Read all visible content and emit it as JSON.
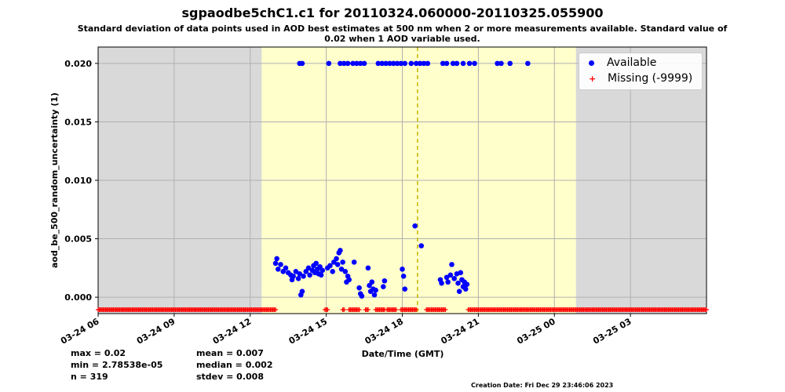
{
  "title": "sgpaodbe5chC1.c1 for 20110324.060000-20110325.055900",
  "subtitle": "Standard deviation of data points used in AOD best estimates at 500 nm when 2 or more measurements available. Standard value of 0.02 when 1 AOD variable used.",
  "stats": {
    "max": "max = 0.02",
    "min": "min = 2.78538e-05",
    "n": "n = 319",
    "mean": "mean = 0.007",
    "median": "median = 0.002",
    "stdev": "stdev = 0.008"
  },
  "creation_date": "Creation Date: Fri Dec 29 23:46:06 2023",
  "colors": {
    "available": "#0000ff",
    "missing": "#ff0000",
    "day_band": "#ffffcc",
    "night_band": "#d9d9d9",
    "noon_line": "#c8b400",
    "grid": "#b0b0b0"
  },
  "legend": {
    "available": "Available",
    "missing": "Missing (-9999)"
  },
  "chart_data": {
    "type": "scatter",
    "title": "sgpaodbe5chC1.c1 for 20110324.060000-20110325.055900",
    "xlabel": "Date/Time (GMT)",
    "ylabel": "aod_be_500_random_uncertainty (1)",
    "x_unit": "hours since 2011-03-24 06:00 GMT",
    "xlim": [
      0,
      24
    ],
    "ylim": [
      -0.0014,
      0.0214
    ],
    "grid": true,
    "legend_position": "top-right",
    "x_ticks": [
      {
        "x": 0,
        "label": "03-24 06"
      },
      {
        "x": 3,
        "label": "03-24 09"
      },
      {
        "x": 6,
        "label": "03-24 12"
      },
      {
        "x": 9,
        "label": "03-24 15"
      },
      {
        "x": 12,
        "label": "03-24 18"
      },
      {
        "x": 15,
        "label": "03-24 21"
      },
      {
        "x": 18,
        "label": "03-25 00"
      },
      {
        "x": 21,
        "label": "03-25 03"
      }
    ],
    "y_ticks": [
      {
        "y": 0.0,
        "label": "0.000"
      },
      {
        "y": 0.005,
        "label": "0.005"
      },
      {
        "y": 0.01,
        "label": "0.010"
      },
      {
        "y": 0.015,
        "label": "0.015"
      },
      {
        "y": 0.02,
        "label": "0.020"
      }
    ],
    "daylight_band": [
      6.45,
      18.85
    ],
    "solar_noon_x": 12.6,
    "series": [
      {
        "name": "Available",
        "points": [
          [
            7.95,
            0.02
          ],
          [
            8.05,
            0.02
          ],
          [
            9.1,
            0.02
          ],
          [
            9.55,
            0.02
          ],
          [
            9.7,
            0.02
          ],
          [
            9.85,
            0.02
          ],
          [
            10.05,
            0.02
          ],
          [
            10.2,
            0.02
          ],
          [
            10.35,
            0.02
          ],
          [
            10.5,
            0.02
          ],
          [
            11.05,
            0.02
          ],
          [
            11.2,
            0.02
          ],
          [
            11.35,
            0.02
          ],
          [
            11.5,
            0.02
          ],
          [
            11.65,
            0.02
          ],
          [
            11.8,
            0.02
          ],
          [
            11.95,
            0.02
          ],
          [
            12.1,
            0.02
          ],
          [
            12.35,
            0.02
          ],
          [
            12.55,
            0.02
          ],
          [
            12.7,
            0.02
          ],
          [
            12.85,
            0.02
          ],
          [
            13.0,
            0.02
          ],
          [
            13.6,
            0.02
          ],
          [
            13.75,
            0.02
          ],
          [
            14.0,
            0.02
          ],
          [
            14.15,
            0.02
          ],
          [
            14.4,
            0.02
          ],
          [
            14.65,
            0.02
          ],
          [
            14.85,
            0.02
          ],
          [
            15.75,
            0.02
          ],
          [
            15.9,
            0.02
          ],
          [
            16.25,
            0.02
          ],
          [
            16.95,
            0.02
          ],
          [
            7.0,
            0.0029
          ],
          [
            7.05,
            0.0033
          ],
          [
            7.1,
            0.0024
          ],
          [
            7.2,
            0.0028
          ],
          [
            7.3,
            0.0022
          ],
          [
            7.4,
            0.0025
          ],
          [
            7.5,
            0.0021
          ],
          [
            7.6,
            0.0019
          ],
          [
            7.65,
            0.0015
          ],
          [
            7.7,
            0.0018
          ],
          [
            7.8,
            0.0022
          ],
          [
            7.9,
            0.0016
          ],
          [
            7.95,
            0.002
          ],
          [
            8.0,
            0.0002
          ],
          [
            8.05,
            0.0005
          ],
          [
            8.1,
            0.0018
          ],
          [
            8.2,
            0.0022
          ],
          [
            8.3,
            0.0025
          ],
          [
            8.35,
            0.0019
          ],
          [
            8.45,
            0.0023
          ],
          [
            8.5,
            0.0027
          ],
          [
            8.55,
            0.0021
          ],
          [
            8.6,
            0.0029
          ],
          [
            8.65,
            0.0024
          ],
          [
            8.7,
            0.002
          ],
          [
            8.75,
            0.0026
          ],
          [
            8.8,
            0.0019
          ],
          [
            8.85,
            0.0023
          ],
          [
            9.05,
            0.0025
          ],
          [
            9.15,
            0.0027
          ],
          [
            9.25,
            0.0022
          ],
          [
            9.3,
            0.003
          ],
          [
            9.4,
            0.0033
          ],
          [
            9.45,
            0.0028
          ],
          [
            9.5,
            0.0038
          ],
          [
            9.55,
            0.004
          ],
          [
            9.6,
            0.0024
          ],
          [
            9.65,
            0.003
          ],
          [
            9.75,
            0.0022
          ],
          [
            9.8,
            0.0013
          ],
          [
            9.85,
            0.0018
          ],
          [
            9.9,
            0.0015
          ],
          [
            10.1,
            0.003
          ],
          [
            10.3,
            0.0008
          ],
          [
            10.35,
            0.0003
          ],
          [
            10.4,
            0.0001
          ],
          [
            10.65,
            0.0025
          ],
          [
            10.7,
            0.001
          ],
          [
            10.75,
            0.0005
          ],
          [
            10.8,
            0.0013
          ],
          [
            10.85,
            0.0007
          ],
          [
            10.9,
            0.0002
          ],
          [
            10.95,
            0.0006
          ],
          [
            11.25,
            0.0009
          ],
          [
            11.3,
            0.0014
          ],
          [
            12.0,
            0.0024
          ],
          [
            12.05,
            0.0018
          ],
          [
            12.1,
            0.0007
          ],
          [
            12.5,
            0.0061
          ],
          [
            12.75,
            0.0044
          ],
          [
            13.5,
            0.0015
          ],
          [
            13.55,
            0.0012
          ],
          [
            13.75,
            0.0017
          ],
          [
            13.8,
            0.0013
          ],
          [
            13.9,
            0.0019
          ],
          [
            13.95,
            0.0028
          ],
          [
            14.05,
            0.0016
          ],
          [
            14.15,
            0.002
          ],
          [
            14.2,
            0.0012
          ],
          [
            14.25,
            0.0005
          ],
          [
            14.3,
            0.0021
          ],
          [
            14.35,
            0.0015
          ],
          [
            14.4,
            0.0009
          ],
          [
            14.45,
            0.0013
          ],
          [
            14.5,
            0.0007
          ],
          [
            14.55,
            0.0011
          ]
        ]
      },
      {
        "name": "Missing (-9999)",
        "placement": "drawn just below the y-axis minimum",
        "ranges": [
          [
            0.0,
            7.0
          ],
          [
            8.95,
            9.05
          ],
          [
            9.65,
            9.7
          ],
          [
            9.9,
            10.3
          ],
          [
            10.55,
            10.65
          ],
          [
            10.95,
            11.3
          ],
          [
            11.4,
            11.75
          ],
          [
            11.95,
            12.55
          ],
          [
            12.95,
            13.7
          ],
          [
            14.6,
            24.0
          ]
        ]
      }
    ]
  }
}
